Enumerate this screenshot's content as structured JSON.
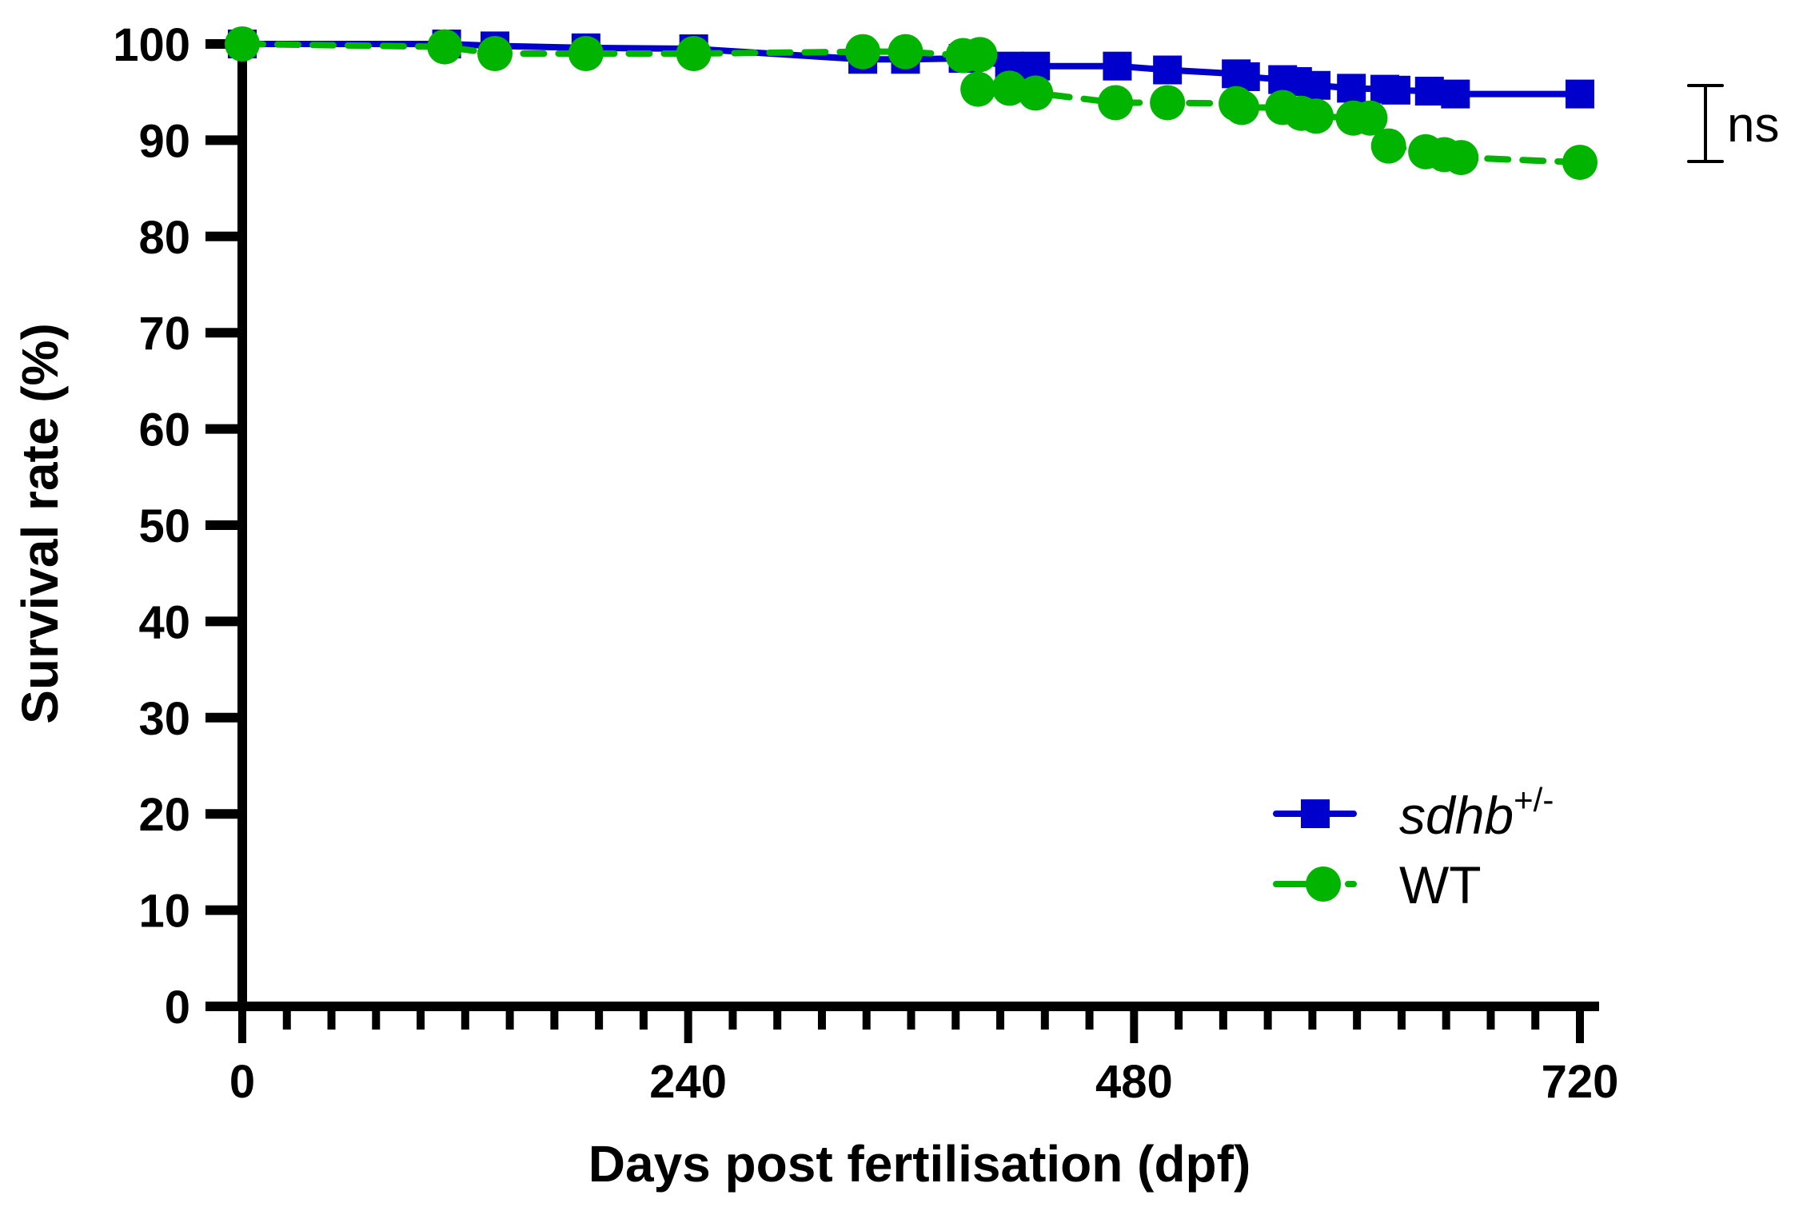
{
  "chart_data": {
    "type": "line",
    "subtype": "kaplan-meier survival",
    "title": "",
    "xlabel": "Days post fertilisation (dpf)",
    "ylabel": "Survival rate (%)",
    "xlim": [
      0,
      720
    ],
    "ylim": [
      0,
      100
    ],
    "x_major_ticks": [
      0,
      240,
      480,
      720
    ],
    "x_major_tick_labels": [
      "0",
      "240",
      "480",
      "720"
    ],
    "x_minor_tick_step": 24,
    "y_ticks": [
      0,
      10,
      20,
      30,
      40,
      50,
      60,
      70,
      80,
      90,
      100
    ],
    "y_tick_labels": [
      "0",
      "10",
      "20",
      "30",
      "40",
      "50",
      "60",
      "70",
      "80",
      "90",
      "100"
    ],
    "grid": false,
    "legend_position": "bottom-right",
    "series": [
      {
        "name": "sdhb",
        "name_superscript": "+/-",
        "italic": true,
        "marker": "square",
        "line_style": "solid",
        "color": "#0000CC",
        "x": [
          0,
          110,
          136,
          185,
          243,
          334,
          357,
          388,
          413,
          427,
          471,
          498,
          535,
          540,
          560,
          568,
          578,
          597,
          615,
          621,
          639,
          653,
          720
        ],
        "y": [
          100,
          100,
          99.8,
          99.6,
          99.5,
          98.4,
          98.4,
          98.5,
          97.7,
          97.7,
          97.7,
          97.3,
          96.9,
          96.6,
          96.3,
          96.1,
          95.7,
          95.4,
          95.3,
          95.2,
          95.1,
          94.8,
          94.8
        ]
      },
      {
        "name": "WT",
        "name_superscript": "",
        "italic": false,
        "marker": "circle",
        "line_style": "dashed",
        "color": "#00B400",
        "x": [
          0,
          109,
          136,
          185,
          243,
          334,
          357,
          388,
          397,
          396,
          413,
          427,
          470,
          498,
          535,
          538,
          560,
          570,
          578,
          598,
          607,
          617,
          637,
          647,
          656,
          720
        ],
        "y": [
          100,
          99.7,
          99.0,
          99.0,
          99.0,
          99.2,
          99.2,
          98.8,
          98.9,
          95.3,
          95.4,
          94.9,
          93.9,
          93.9,
          93.8,
          93.4,
          93.4,
          92.8,
          92.5,
          92.3,
          92.3,
          89.4,
          88.8,
          88.5,
          88.2,
          87.7
        ]
      }
    ],
    "annotations": [
      {
        "type": "significance-bracket",
        "text": "ns",
        "between": [
          "sdhb+/-",
          "WT"
        ],
        "y_range": [
          87.7,
          94.8
        ]
      }
    ]
  }
}
